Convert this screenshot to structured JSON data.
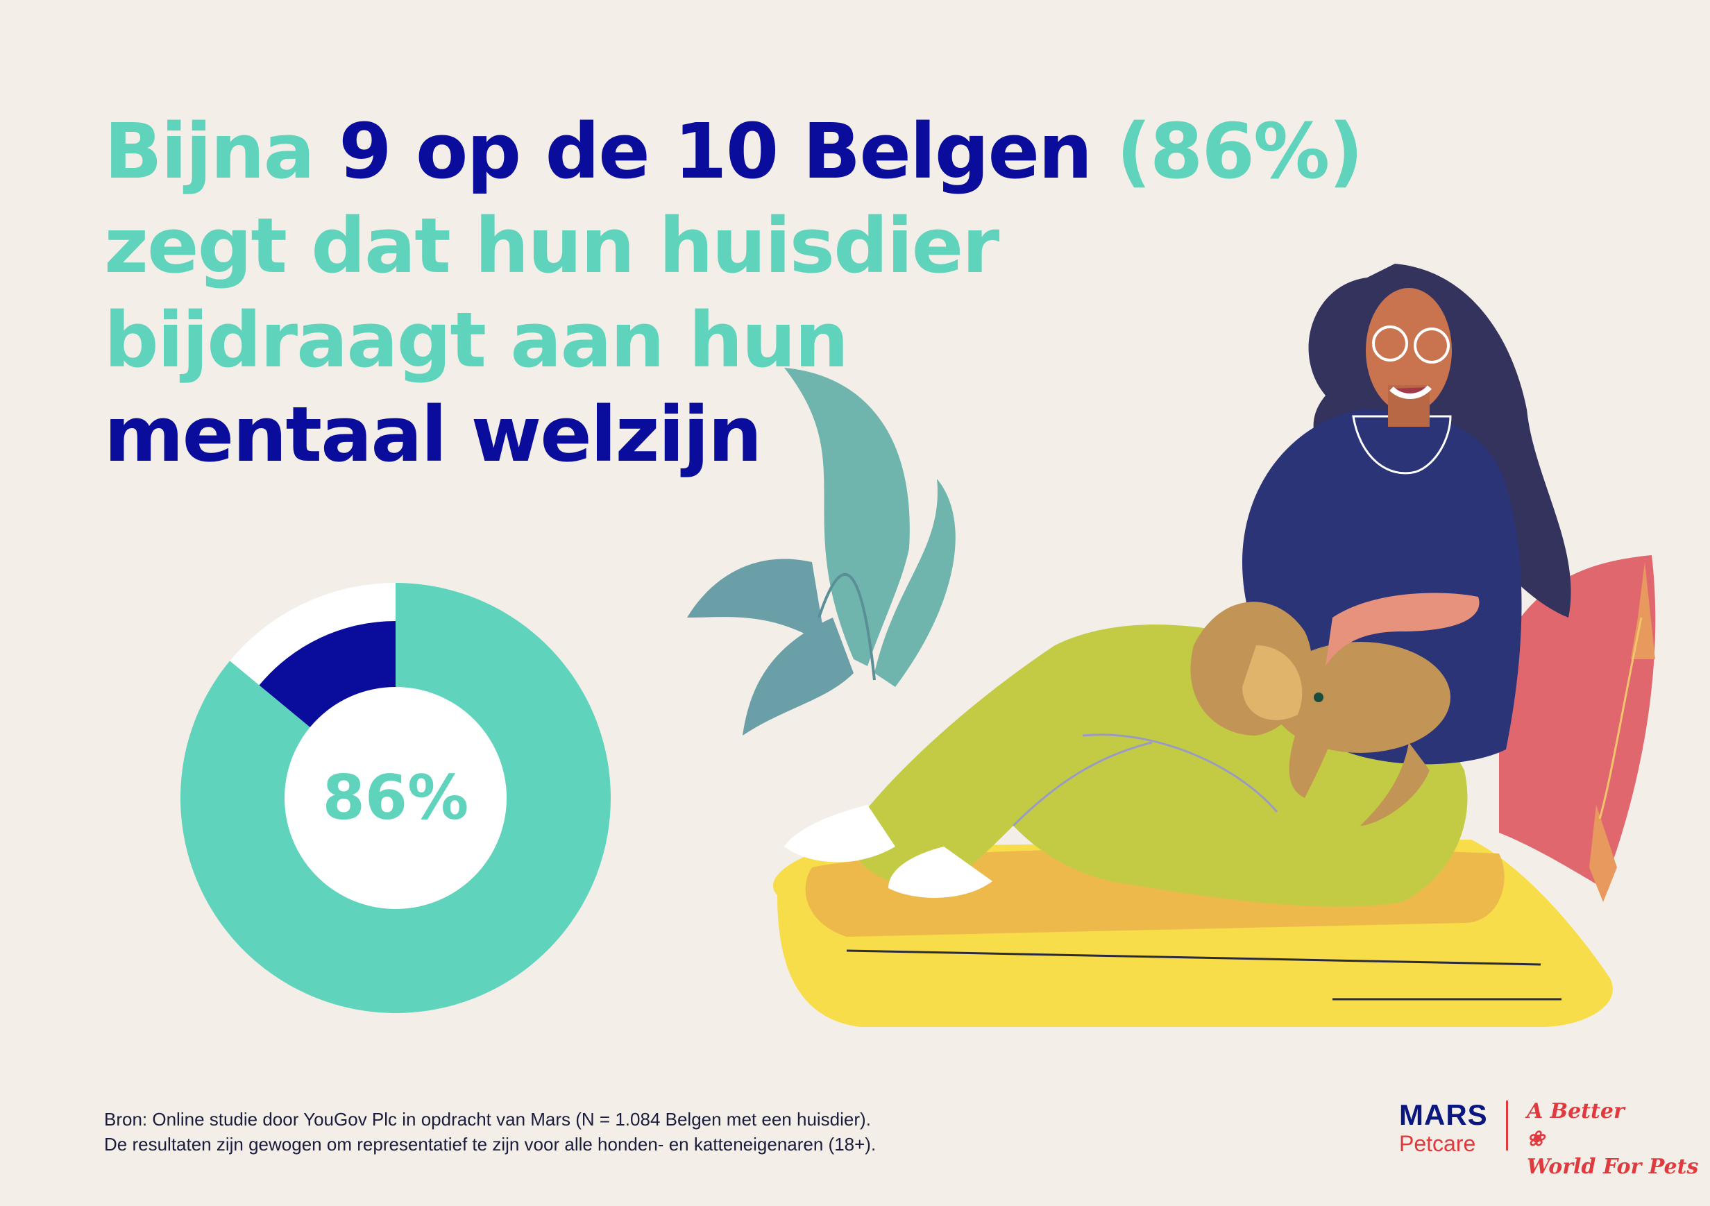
{
  "headline": {
    "line1": {
      "part1": "Bijna",
      "part2": "9 op de 10 Belgen",
      "part3": "(86%)"
    },
    "line2": "zegt dat hun huisdier",
    "line3": "bijdraagt aan hun",
    "line4": "mentaal welzijn"
  },
  "chart_data": {
    "type": "pie",
    "style": "donut",
    "slices": [
      {
        "value": 86,
        "color": "#5fd3bb"
      },
      {
        "value": 14,
        "color": "#0a0c9c"
      }
    ],
    "center_label": "86%"
  },
  "footnote": {
    "line1": "Bron: Online studie door YouGov Plc in opdracht van Mars (N = 1.084 Belgen met een huisdier).",
    "line2": "De resultaten zijn gewogen om representatief te zijn voor alle honden- en katteneigenaren (18+)."
  },
  "logo": {
    "brand": "MARS",
    "sub": "Petcare",
    "tagline_line1": "A Better",
    "tagline_line2": "World For Pets"
  },
  "colors": {
    "background": "#f3efe8",
    "teal": "#5fd3bb",
    "navy": "#0a0c9c",
    "brand_red": "#e0393e"
  },
  "icons": [
    "woman-with-dog-illustration-icon",
    "plant-icon",
    "cushion-icon",
    "paw-icon"
  ]
}
